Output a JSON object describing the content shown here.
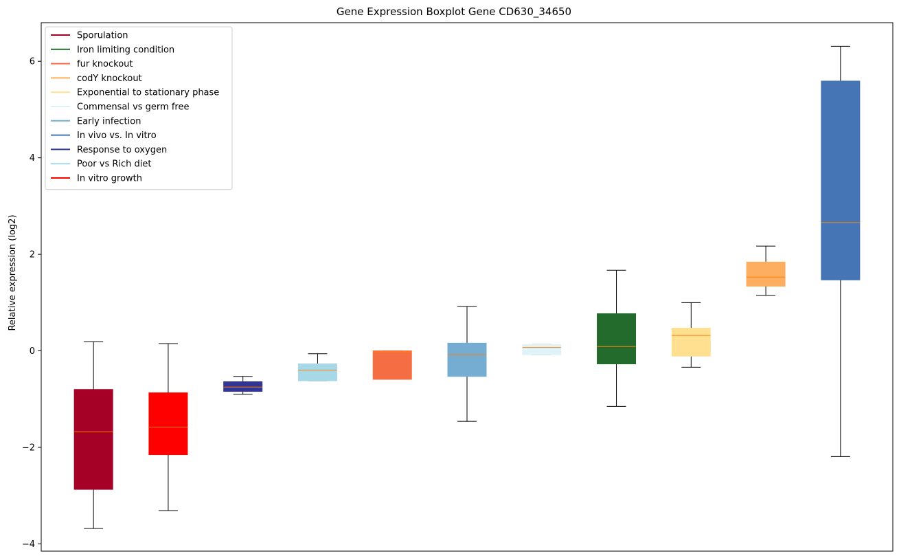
{
  "chart_data": {
    "type": "boxplot",
    "title": "Gene Expression Boxplot Gene CD630_34650",
    "xlabel": "",
    "ylabel": "Relative expression (log2)",
    "ylim": [
      -4.15,
      6.8
    ],
    "yticks": [
      -4,
      -2,
      0,
      2,
      4,
      6
    ],
    "ytick_labels": [
      "−4",
      "−2",
      "0",
      "2",
      "4",
      "6"
    ],
    "legend_position": "upper-left",
    "median_color": "#ff7f0e",
    "legend": [
      {
        "name": "Sporulation",
        "color": "#a50026"
      },
      {
        "name": "Iron limiting condition",
        "color": "#236b2c"
      },
      {
        "name": "fur knockout",
        "color": "#f46d43"
      },
      {
        "name": "codY knockout",
        "color": "#fdae61"
      },
      {
        "name": "Exponential to stationary phase",
        "color": "#fee090"
      },
      {
        "name": "Commensal vs germ free",
        "color": "#e0f3f8"
      },
      {
        "name": "Early infection",
        "color": "#74add1"
      },
      {
        "name": "In vivo vs. In vitro",
        "color": "#4575b4"
      },
      {
        "name": "Response to oxygen",
        "color": "#313695"
      },
      {
        "name": "Poor vs Rich diet",
        "color": "#a6d8e7"
      },
      {
        "name": "In vitro growth",
        "color": "#ff0000"
      }
    ],
    "boxes": [
      {
        "group": "Sporulation",
        "color": "#a50026",
        "whislo": -3.68,
        "q1": -2.87,
        "median": -1.68,
        "q3": -0.8,
        "whishi": 0.19
      },
      {
        "group": "In vitro growth",
        "color": "#ff0000",
        "whislo": -3.31,
        "q1": -2.15,
        "median": -1.58,
        "q3": -0.87,
        "whishi": 0.15
      },
      {
        "group": "Response to oxygen",
        "color": "#313695",
        "whislo": -0.9,
        "q1": -0.84,
        "median": -0.75,
        "q3": -0.64,
        "whishi": -0.53
      },
      {
        "group": "Poor vs Rich diet",
        "color": "#a6d8e7",
        "whislo": -0.62,
        "q1": -0.62,
        "median": -0.4,
        "q3": -0.27,
        "whishi": -0.06
      },
      {
        "group": "fur knockout",
        "color": "#f46d43",
        "whislo": -0.59,
        "q1": -0.59,
        "median": -0.02,
        "q3": 0.0,
        "whishi": 0.0
      },
      {
        "group": "Early infection",
        "color": "#74add1",
        "whislo": -1.46,
        "q1": -0.53,
        "median": -0.08,
        "q3": 0.16,
        "whishi": 0.92
      },
      {
        "group": "Commensal vs germ free",
        "color": "#e0f3f8",
        "whislo": -0.08,
        "q1": -0.08,
        "median": 0.07,
        "q3": 0.13,
        "whishi": 0.13
      },
      {
        "group": "Iron limiting condition",
        "color": "#236b2c",
        "whislo": -1.15,
        "q1": -0.27,
        "median": 0.09,
        "q3": 0.77,
        "whishi": 1.67
      },
      {
        "group": "Exponential to stationary phase",
        "color": "#fee090",
        "whislo": -0.34,
        "q1": -0.11,
        "median": 0.32,
        "q3": 0.47,
        "whishi": 1.0
      },
      {
        "group": "codY knockout",
        "color": "#fdae61",
        "whislo": 1.15,
        "q1": 1.34,
        "median": 1.53,
        "q3": 1.84,
        "whishi": 2.17
      },
      {
        "group": "In vivo vs. In vitro",
        "color": "#4575b4",
        "whislo": -2.19,
        "q1": 1.47,
        "median": 2.66,
        "q3": 5.59,
        "whishi": 6.31
      }
    ]
  }
}
